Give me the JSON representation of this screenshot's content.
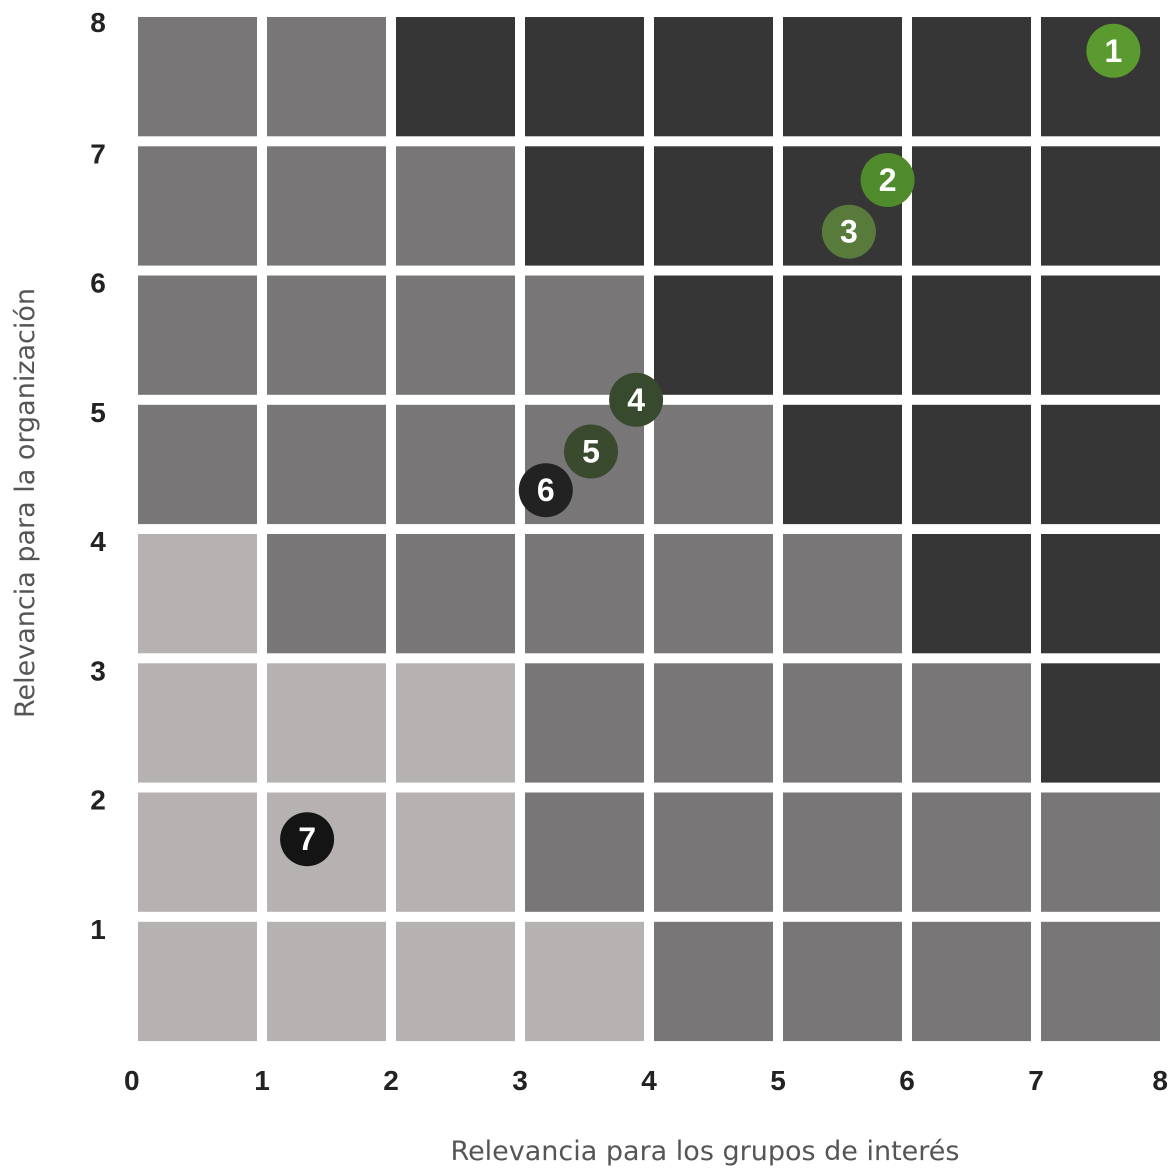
{
  "chart_data": {
    "type": "scatter",
    "title": "",
    "xlabel": "Relevancia para los grupos de interés",
    "ylabel": "Relevancia para la organización",
    "xlim": [
      0,
      8
    ],
    "ylim": [
      0,
      8
    ],
    "x_ticks": [
      "0",
      "1",
      "2",
      "3",
      "4",
      "5",
      "6",
      "7",
      "8"
    ],
    "y_ticks": [
      "1",
      "2",
      "3",
      "4",
      "5",
      "6",
      "7",
      "8"
    ],
    "grid": true,
    "colors": {
      "light": "#b6b2b1",
      "medium": "#787677",
      "dark": "#363636"
    },
    "cell_levels_top_to_bottom": [
      [
        "medium",
        "medium",
        "dark",
        "dark",
        "dark",
        "dark",
        "dark",
        "dark"
      ],
      [
        "medium",
        "medium",
        "medium",
        "dark",
        "dark",
        "dark",
        "dark",
        "dark"
      ],
      [
        "medium",
        "medium",
        "medium",
        "medium",
        "dark",
        "dark",
        "dark",
        "dark"
      ],
      [
        "medium",
        "medium",
        "medium",
        "medium",
        "medium",
        "dark",
        "dark",
        "dark"
      ],
      [
        "light",
        "medium",
        "medium",
        "medium",
        "medium",
        "medium",
        "dark",
        "dark"
      ],
      [
        "light",
        "light",
        "light",
        "medium",
        "medium",
        "medium",
        "medium",
        "dark"
      ],
      [
        "light",
        "light",
        "light",
        "medium",
        "medium",
        "medium",
        "medium",
        "medium"
      ],
      [
        "light",
        "light",
        "light",
        "light",
        "medium",
        "medium",
        "medium",
        "medium"
      ]
    ],
    "points": [
      {
        "label": "1",
        "x": 7.6,
        "y": 7.7,
        "color": "#5a9a2e"
      },
      {
        "label": "2",
        "x": 5.85,
        "y": 6.7,
        "color": "#4f8a2b"
      },
      {
        "label": "3",
        "x": 5.55,
        "y": 6.3,
        "color": "#587a3a"
      },
      {
        "label": "4",
        "x": 3.9,
        "y": 5.0,
        "color": "#384a2e"
      },
      {
        "label": "5",
        "x": 3.55,
        "y": 4.6,
        "color": "#3a4a2f"
      },
      {
        "label": "6",
        "x": 3.2,
        "y": 4.3,
        "color": "#222222"
      },
      {
        "label": "7",
        "x": 1.35,
        "y": 1.6,
        "color": "#141414"
      }
    ]
  }
}
